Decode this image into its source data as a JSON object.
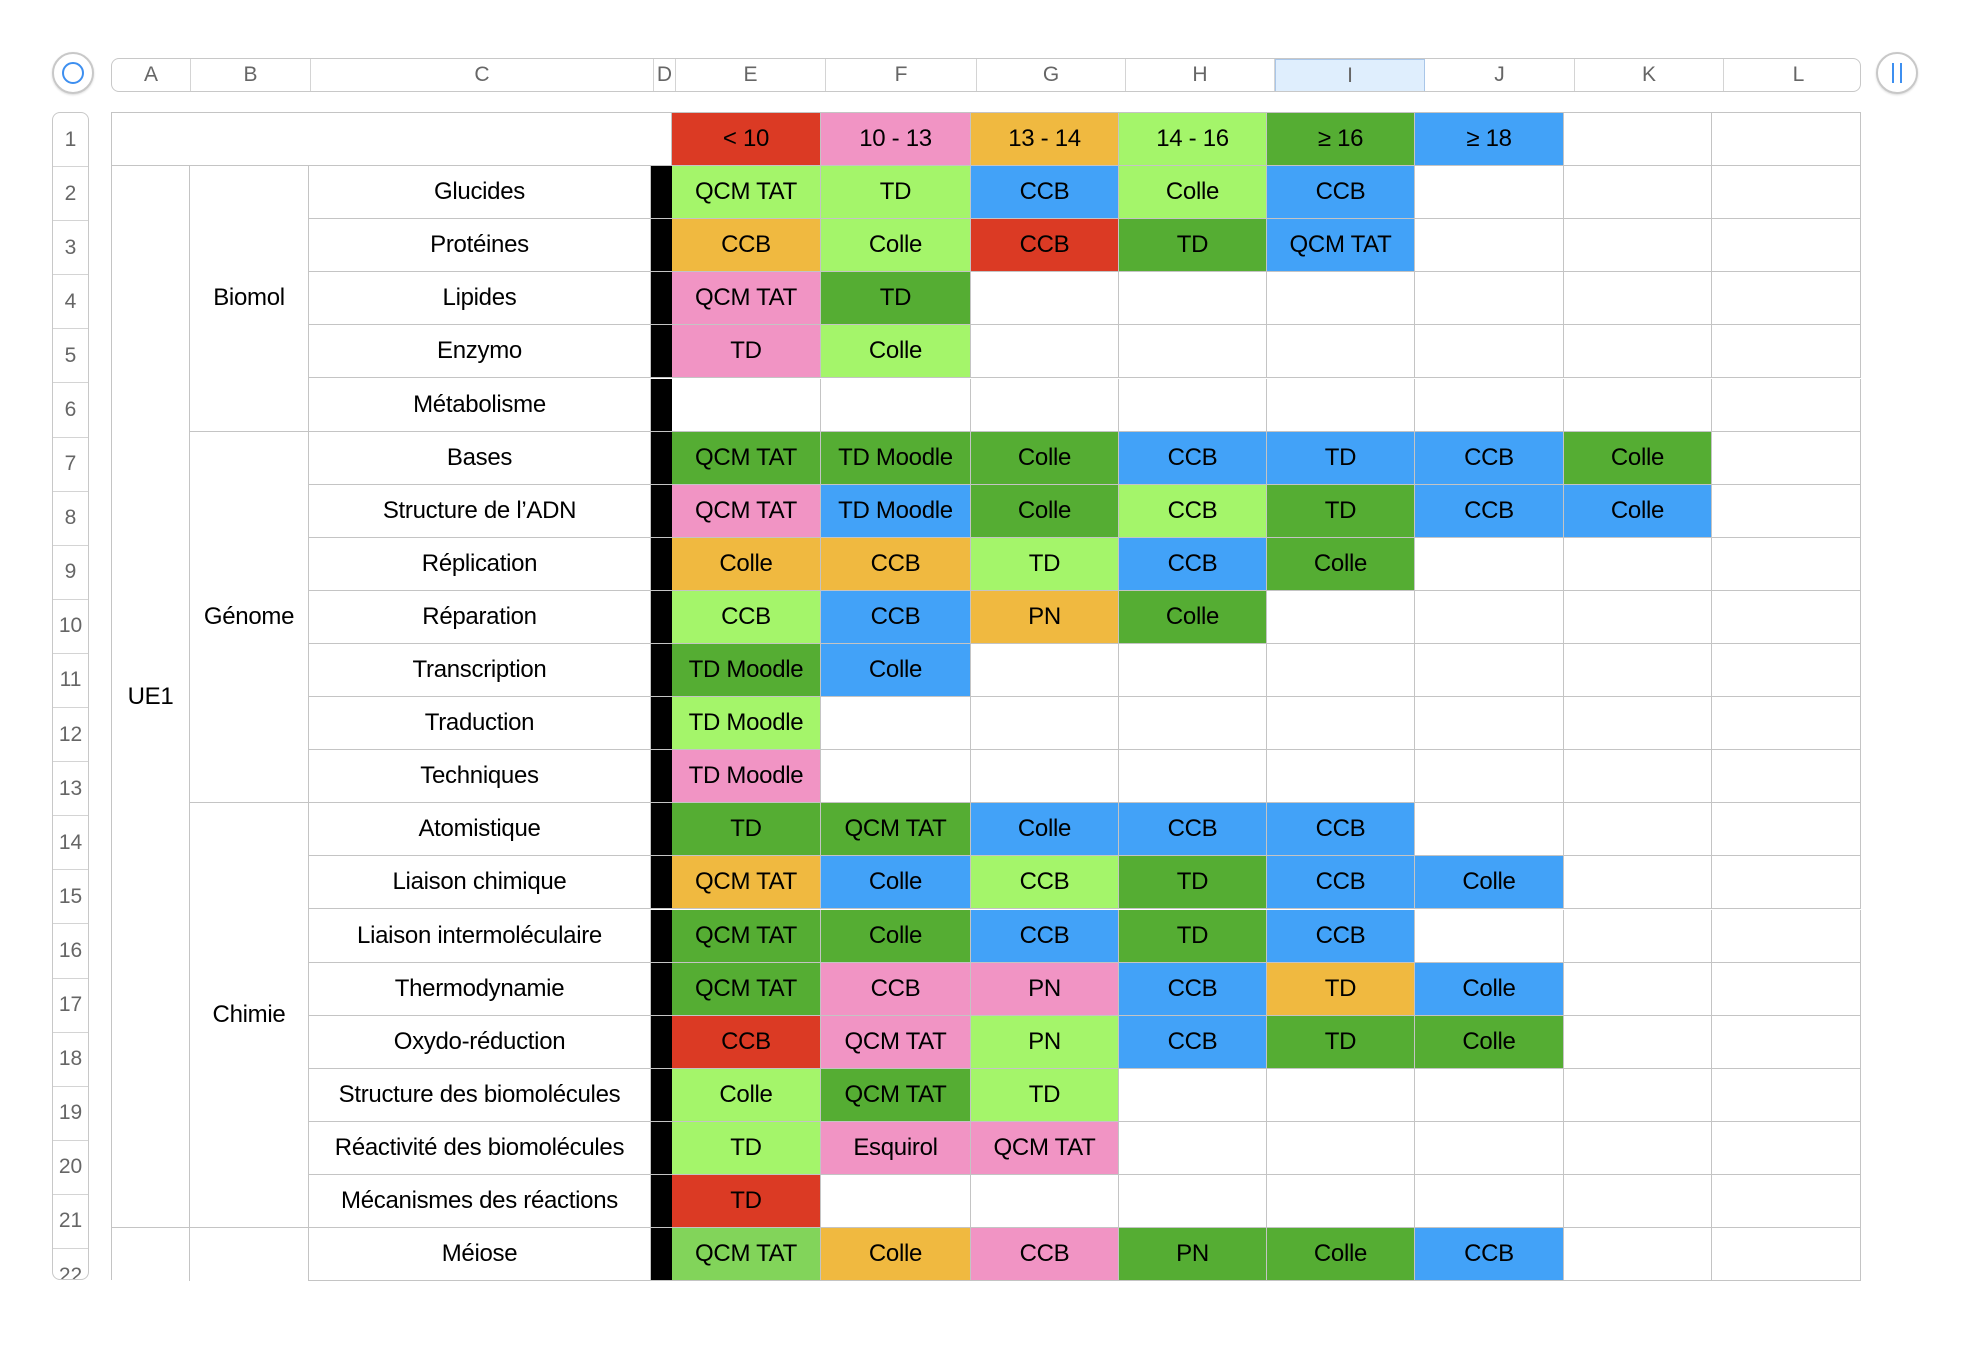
{
  "colors": {
    "red": "#db3a24",
    "pink": "#f194c4",
    "orange": "#f0b940",
    "lightgreen": "#a4f56a",
    "green": "#55ad33",
    "midgreen": "#82d45a",
    "blue": "#42a2f8",
    "black": "#000000"
  },
  "columns": [
    "A",
    "B",
    "C",
    "D",
    "E",
    "F",
    "G",
    "H",
    "I",
    "J",
    "K",
    "L"
  ],
  "selected_column": "I",
  "rows": [
    "1",
    "2",
    "3",
    "4",
    "5",
    "6",
    "7",
    "8",
    "9",
    "10",
    "11",
    "12",
    "13",
    "14",
    "15",
    "16",
    "17",
    "18",
    "19",
    "20",
    "21",
    "22"
  ],
  "grade_headers": [
    {
      "label": "< 10",
      "color": "red"
    },
    {
      "label": "10 - 13",
      "color": "pink"
    },
    {
      "label": "13 - 14",
      "color": "orange"
    },
    {
      "label": "14 - 16",
      "color": "lightgreen"
    },
    {
      "label": "≥ 16",
      "color": "green"
    },
    {
      "label": "≥ 18",
      "color": "blue"
    }
  ],
  "ue_label": "UE1",
  "groups": [
    {
      "label": "Biomol",
      "start": 2,
      "end": 6
    },
    {
      "label": "Génome",
      "start": 7,
      "end": 13
    },
    {
      "label": "Chimie",
      "start": 14,
      "end": 21
    }
  ],
  "subjects": [
    {
      "name": "Glucides",
      "cells": [
        [
          "QCM TAT",
          "lightgreen"
        ],
        [
          "TD",
          "lightgreen"
        ],
        [
          "CCB",
          "blue"
        ],
        [
          "Colle",
          "lightgreen"
        ],
        [
          "CCB",
          "blue"
        ]
      ]
    },
    {
      "name": "Protéines",
      "cells": [
        [
          "CCB",
          "orange"
        ],
        [
          "Colle",
          "lightgreen"
        ],
        [
          "CCB",
          "red"
        ],
        [
          "TD",
          "green"
        ],
        [
          "QCM TAT",
          "blue"
        ]
      ]
    },
    {
      "name": "Lipides",
      "cells": [
        [
          "QCM TAT",
          "pink"
        ],
        [
          "TD",
          "green"
        ]
      ]
    },
    {
      "name": "Enzymo",
      "cells": [
        [
          "TD",
          "pink"
        ],
        [
          "Colle",
          "lightgreen"
        ]
      ]
    },
    {
      "name": "Métabolisme",
      "cells": []
    },
    {
      "name": "Bases",
      "cells": [
        [
          "QCM TAT",
          "green"
        ],
        [
          "TD Moodle",
          "green"
        ],
        [
          "Colle",
          "green"
        ],
        [
          "CCB",
          "blue"
        ],
        [
          "TD",
          "blue"
        ],
        [
          "CCB",
          "blue"
        ],
        [
          "Colle",
          "green"
        ]
      ]
    },
    {
      "name": "Structure de l’ADN",
      "cells": [
        [
          "QCM TAT",
          "pink"
        ],
        [
          "TD Moodle",
          "blue"
        ],
        [
          "Colle",
          "green"
        ],
        [
          "CCB",
          "lightgreen"
        ],
        [
          "TD",
          "green"
        ],
        [
          "CCB",
          "blue"
        ],
        [
          "Colle",
          "blue"
        ]
      ]
    },
    {
      "name": "Réplication",
      "cells": [
        [
          "Colle",
          "orange"
        ],
        [
          "CCB",
          "orange"
        ],
        [
          "TD",
          "lightgreen"
        ],
        [
          "CCB",
          "blue"
        ],
        [
          "Colle",
          "green"
        ]
      ]
    },
    {
      "name": "Réparation",
      "cells": [
        [
          "CCB",
          "lightgreen"
        ],
        [
          "CCB",
          "blue"
        ],
        [
          "PN",
          "orange"
        ],
        [
          "Colle",
          "green"
        ]
      ]
    },
    {
      "name": "Transcription",
      "cells": [
        [
          "TD Moodle",
          "green"
        ],
        [
          "Colle",
          "blue"
        ]
      ]
    },
    {
      "name": "Traduction",
      "cells": [
        [
          "TD Moodle",
          "lightgreen"
        ]
      ]
    },
    {
      "name": "Techniques",
      "cells": [
        [
          "TD Moodle",
          "pink"
        ]
      ]
    },
    {
      "name": "Atomistique",
      "cells": [
        [
          "TD",
          "green"
        ],
        [
          "QCM TAT",
          "green"
        ],
        [
          "Colle",
          "blue"
        ],
        [
          "CCB",
          "blue"
        ],
        [
          "CCB",
          "blue"
        ]
      ]
    },
    {
      "name": "Liaison chimique",
      "cells": [
        [
          "QCM TAT",
          "orange"
        ],
        [
          "Colle",
          "blue"
        ],
        [
          "CCB",
          "lightgreen"
        ],
        [
          "TD",
          "green"
        ],
        [
          "CCB",
          "blue"
        ],
        [
          "Colle",
          "blue"
        ]
      ]
    },
    {
      "name": "Liaison intermoléculaire",
      "cells": [
        [
          "QCM TAT",
          "green"
        ],
        [
          "Colle",
          "green"
        ],
        [
          "CCB",
          "blue"
        ],
        [
          "TD",
          "green"
        ],
        [
          "CCB",
          "blue"
        ]
      ]
    },
    {
      "name": "Thermodynamie",
      "cells": [
        [
          "QCM TAT",
          "green"
        ],
        [
          "CCB",
          "pink"
        ],
        [
          "PN",
          "pink"
        ],
        [
          "CCB",
          "blue"
        ],
        [
          "TD",
          "orange"
        ],
        [
          "Colle",
          "blue"
        ]
      ]
    },
    {
      "name": "Oxydo-réduction",
      "cells": [
        [
          "CCB",
          "red"
        ],
        [
          "QCM TAT",
          "pink"
        ],
        [
          "PN",
          "lightgreen"
        ],
        [
          "CCB",
          "blue"
        ],
        [
          "TD",
          "green"
        ],
        [
          "Colle",
          "green"
        ]
      ]
    },
    {
      "name": "Structure des biomolécules",
      "cells": [
        [
          "Colle",
          "lightgreen"
        ],
        [
          "QCM TAT",
          "green"
        ],
        [
          "TD",
          "lightgreen"
        ]
      ]
    },
    {
      "name": "Réactivité des biomolécules",
      "cells": [
        [
          "TD",
          "lightgreen"
        ],
        [
          "Esquirol",
          "pink"
        ],
        [
          "QCM TAT",
          "pink"
        ]
      ]
    },
    {
      "name": "Mécanismes des réactions",
      "cells": [
        [
          "TD",
          "red"
        ]
      ]
    },
    {
      "name": "Méiose",
      "cells": [
        [
          "QCM TAT",
          "midgreen"
        ],
        [
          "Colle",
          "orange"
        ],
        [
          "CCB",
          "pink"
        ],
        [
          "PN",
          "green"
        ],
        [
          "Colle",
          "green"
        ],
        [
          "CCB",
          "blue"
        ]
      ]
    }
  ]
}
